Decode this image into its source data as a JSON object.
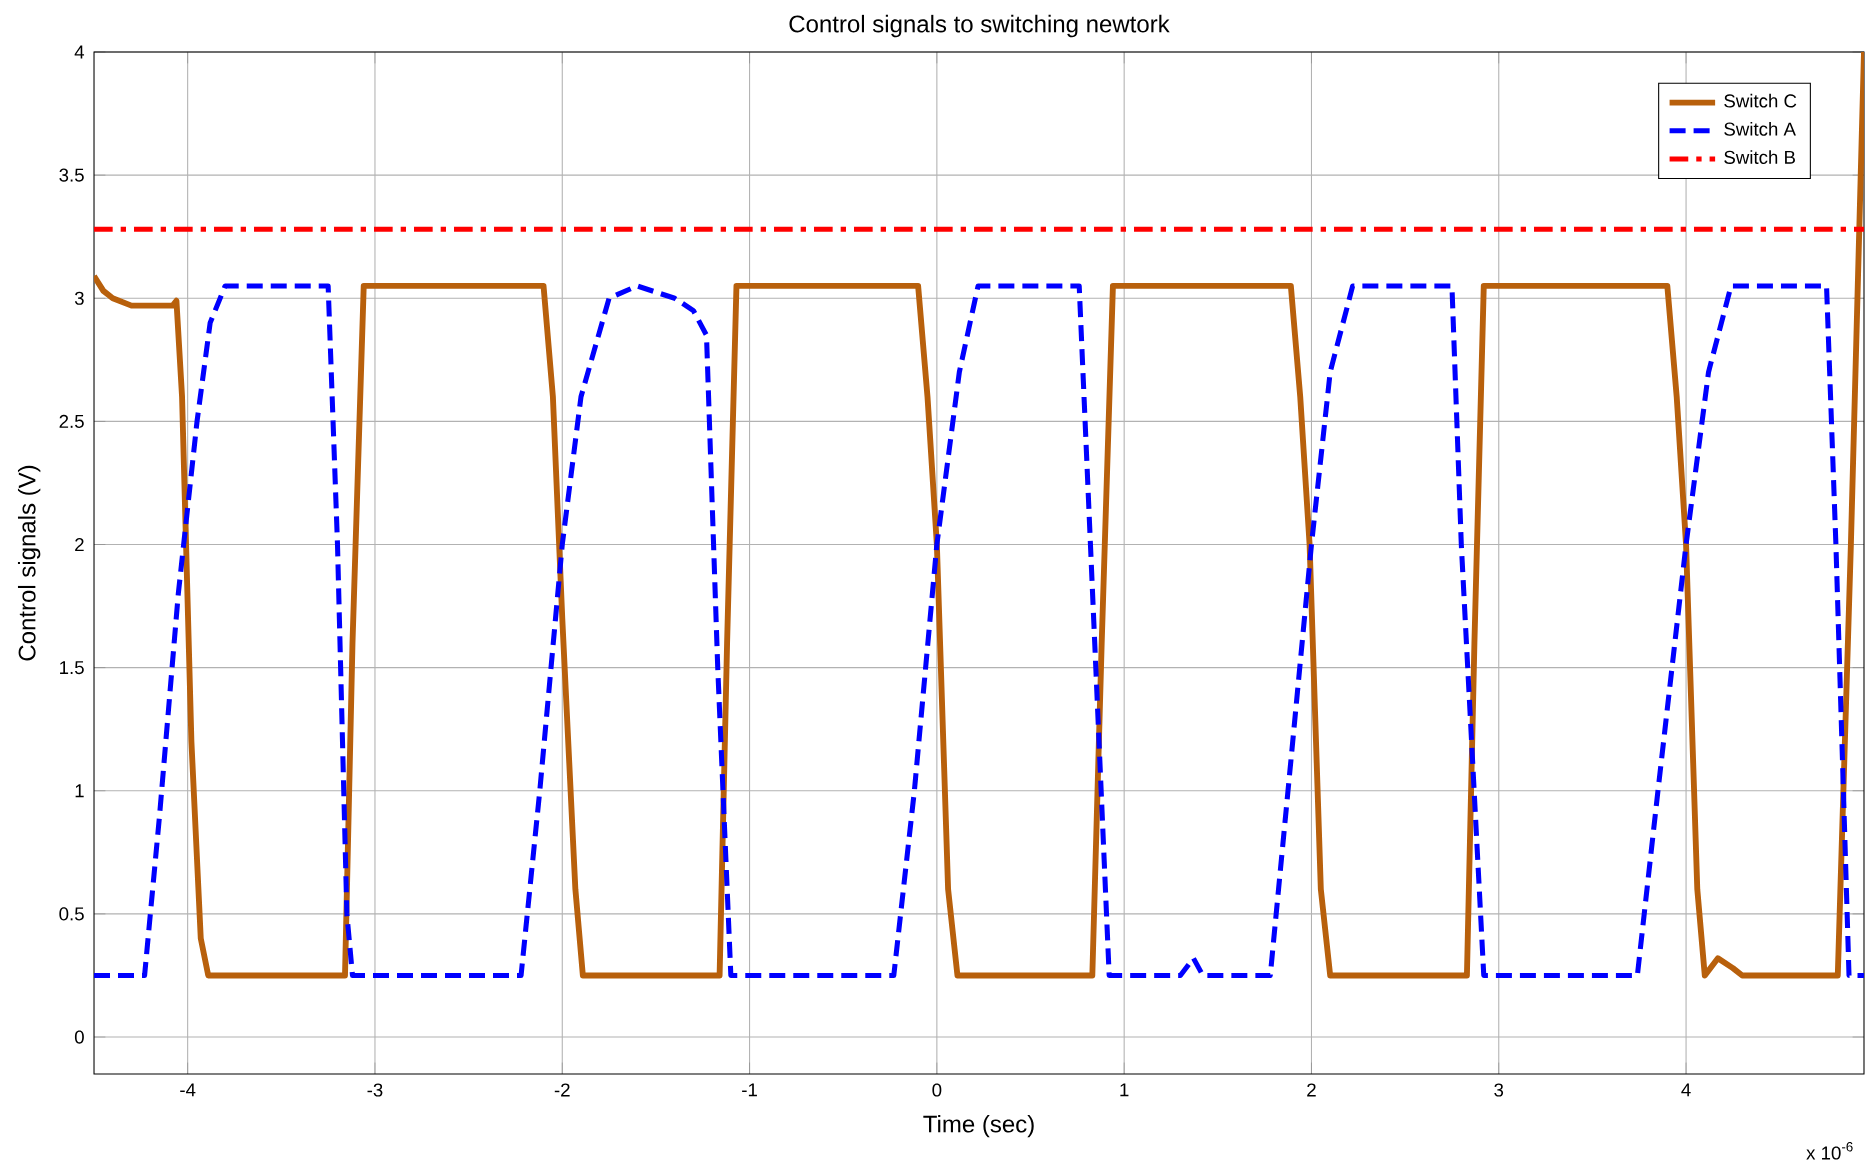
{
  "chart_data": {
    "type": "line",
    "title": "Control signals to switching newtork",
    "xlabel": "Time (sec)",
    "ylabel": "Control signals (V)",
    "annotations": [
      "x 10$^{-6}$"
    ],
    "xlim": [
      -4.5,
      4.95
    ],
    "ylim": [
      -0.15,
      4
    ],
    "xticks": [
      -4,
      -3,
      -2,
      -1,
      0,
      1,
      2,
      3,
      4
    ],
    "yticks": [
      0,
      0.5,
      1,
      1.5,
      2,
      2.5,
      3,
      3.5,
      4
    ],
    "grid": true,
    "legend": "top right",
    "series": [
      {
        "name": "Switch C",
        "color": "#b8600c",
        "line_style": "solid",
        "x": [
          -4.5,
          -4.45,
          -4.4,
          -4.3,
          -4.2,
          -4.08,
          -4.06,
          -4.03,
          -3.98,
          -3.93,
          -3.89,
          -3.16,
          -3.12,
          -3.06,
          -2.1,
          -2.05,
          -2.0,
          -1.93,
          -1.89,
          -1.16,
          -1.12,
          -1.07,
          -0.1,
          -0.05,
          0.0,
          0.06,
          0.11,
          0.83,
          0.88,
          0.94,
          1.89,
          1.94,
          1.99,
          2.05,
          2.1,
          2.83,
          2.87,
          2.92,
          3.9,
          3.95,
          4.0,
          4.06,
          4.1,
          4.17,
          4.25,
          4.3,
          4.81,
          4.88,
          4.95
        ],
        "values": [
          3.09,
          3.03,
          3.0,
          2.97,
          2.97,
          2.97,
          2.99,
          2.6,
          1.2,
          0.4,
          0.25,
          0.25,
          1.6,
          3.05,
          3.05,
          2.6,
          1.7,
          0.6,
          0.25,
          0.25,
          1.6,
          3.05,
          3.05,
          2.6,
          2.0,
          0.6,
          0.25,
          0.25,
          1.6,
          3.05,
          3.05,
          2.6,
          2.0,
          0.6,
          0.25,
          0.25,
          1.6,
          3.05,
          3.05,
          2.6,
          2.0,
          0.6,
          0.25,
          0.32,
          0.28,
          0.25,
          0.25,
          2.0,
          4.0
        ]
      },
      {
        "name": "Switch A",
        "color": "#0000ff",
        "line_style": "dashed",
        "x": [
          -4.5,
          -4.23,
          -4.15,
          -4.05,
          -3.95,
          -3.88,
          -3.8,
          -3.25,
          -3.2,
          -3.15,
          -3.12,
          -2.22,
          -2.12,
          -2.0,
          -1.9,
          -1.75,
          -1.6,
          -1.4,
          -1.3,
          -1.23,
          -1.17,
          -1.1,
          -0.23,
          -0.12,
          0.0,
          0.12,
          0.22,
          0.76,
          0.82,
          0.92,
          1.3,
          1.37,
          1.42,
          1.78,
          1.9,
          2.0,
          2.1,
          2.22,
          2.75,
          2.8,
          2.92,
          3.74,
          3.85,
          4.0,
          4.12,
          4.24,
          4.75,
          4.8,
          4.87,
          4.95
        ],
        "values": [
          0.25,
          0.25,
          0.9,
          1.8,
          2.5,
          2.9,
          3.05,
          3.05,
          2.0,
          0.5,
          0.25,
          0.25,
          1.0,
          2.0,
          2.6,
          3.0,
          3.05,
          3.0,
          2.95,
          2.85,
          1.5,
          0.25,
          0.25,
          1.0,
          2.0,
          2.7,
          3.05,
          3.05,
          2.0,
          0.25,
          0.25,
          0.32,
          0.25,
          0.25,
          1.2,
          2.0,
          2.7,
          3.05,
          3.05,
          2.0,
          0.25,
          0.25,
          1.0,
          2.0,
          2.7,
          3.05,
          3.05,
          2.0,
          0.25,
          0.25
        ]
      },
      {
        "name": "Switch B",
        "color": "#ff0000",
        "line_style": "dashdot",
        "x": [
          -4.5,
          4.95
        ],
        "values": [
          3.28,
          3.28
        ]
      }
    ]
  }
}
